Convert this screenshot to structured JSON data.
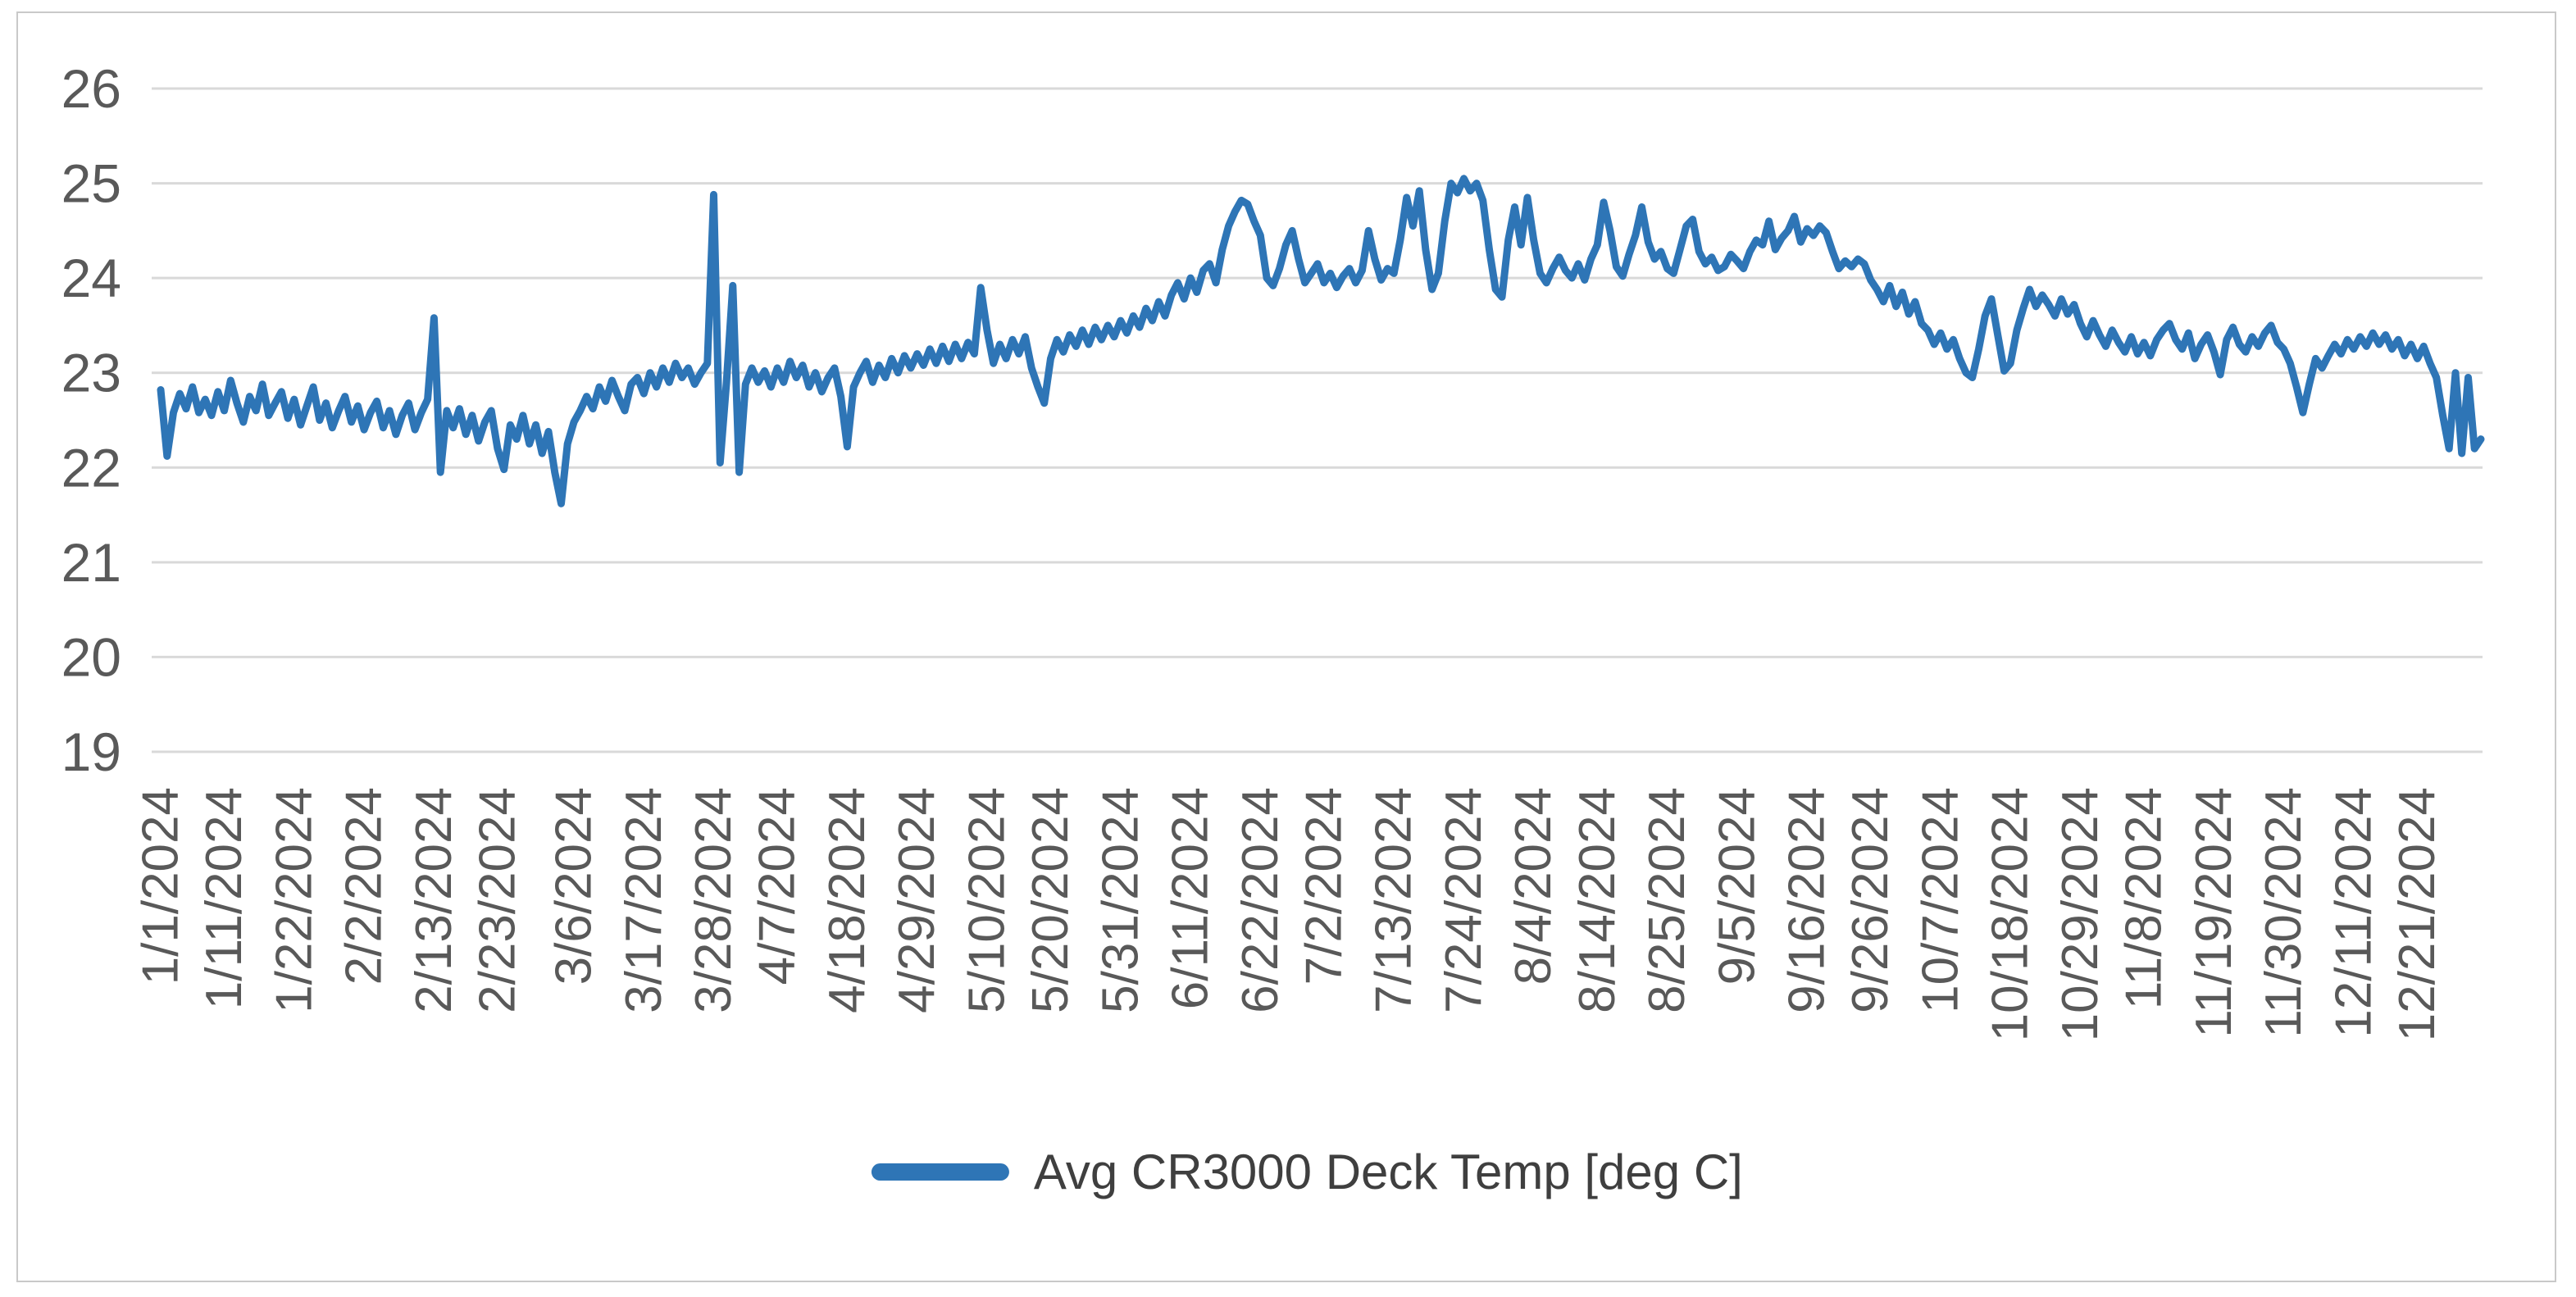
{
  "chart": {
    "legend_label": "Avg CR3000 Deck Temp [deg C]",
    "colors": {
      "line": "#2E75B6",
      "gridline": "#D9D9D9",
      "axis_text": "#595959",
      "legend_text": "#3F3F3F",
      "border": "#C9C9C9",
      "background": "#FFFFFF"
    }
  },
  "chart_data": {
    "type": "line",
    "title": "",
    "xlabel": "",
    "ylabel": "",
    "series_name": "Avg CR3000 Deck Temp [deg C]",
    "sampling": "daily averages, 1/1/2024 - 12/31/2024",
    "ylim": [
      19,
      26
    ],
    "yticks": [
      26,
      25,
      24,
      23,
      22,
      21,
      20,
      19
    ],
    "grid": "horizontal",
    "legend_position": "bottom-center",
    "x_tick_day_index": [
      0,
      10,
      21,
      32,
      43,
      53,
      65,
      76,
      87,
      97,
      108,
      119,
      130,
      140,
      151,
      162,
      173,
      183,
      194,
      205,
      216,
      226,
      237,
      248,
      259,
      269,
      280,
      291,
      302,
      312,
      323,
      334,
      345,
      355
    ],
    "x_tick_labels": [
      "1/1/2024",
      "1/11/2024",
      "1/22/2024",
      "2/2/2024",
      "2/13/2024",
      "2/23/2024",
      "3/6/2024",
      "3/17/2024",
      "3/28/2024",
      "4/7/2024",
      "4/18/2024",
      "4/29/2024",
      "5/10/2024",
      "5/20/2024",
      "5/31/2024",
      "6/11/2024",
      "6/22/2024",
      "7/2/2024",
      "7/13/2024",
      "7/24/2024",
      "8/4/2024",
      "8/14/2024",
      "8/25/2024",
      "9/5/2024",
      "9/16/2024",
      "9/26/2024",
      "10/7/2024",
      "10/18/2024",
      "10/29/2024",
      "11/8/2024",
      "11/19/2024",
      "11/30/2024",
      "12/11/2024",
      "12/21/2024"
    ],
    "values": [
      22.82,
      22.12,
      22.58,
      22.78,
      22.62,
      22.85,
      22.58,
      22.72,
      22.55,
      22.8,
      22.6,
      22.92,
      22.68,
      22.48,
      22.75,
      22.6,
      22.88,
      22.55,
      22.68,
      22.8,
      22.52,
      22.72,
      22.45,
      22.65,
      22.85,
      22.5,
      22.68,
      22.42,
      22.6,
      22.75,
      22.48,
      22.65,
      22.4,
      22.58,
      22.7,
      22.42,
      22.6,
      22.35,
      22.55,
      22.68,
      22.4,
      22.58,
      22.72,
      23.58,
      21.95,
      22.6,
      22.42,
      22.62,
      22.35,
      22.55,
      22.28,
      22.48,
      22.6,
      22.2,
      21.98,
      22.45,
      22.3,
      22.55,
      22.25,
      22.45,
      22.15,
      22.38,
      21.95,
      21.62,
      22.25,
      22.48,
      22.6,
      22.75,
      22.62,
      22.85,
      22.7,
      22.92,
      22.75,
      22.6,
      22.88,
      22.95,
      22.78,
      23.0,
      22.85,
      23.05,
      22.9,
      23.1,
      22.95,
      23.05,
      22.88,
      23.0,
      23.1,
      24.88,
      22.05,
      22.9,
      23.92,
      21.95,
      22.88,
      23.05,
      22.9,
      23.02,
      22.85,
      23.05,
      22.9,
      23.12,
      22.95,
      23.08,
      22.85,
      23.0,
      22.8,
      22.95,
      23.05,
      22.75,
      22.22,
      22.85,
      23.0,
      23.12,
      22.9,
      23.08,
      22.95,
      23.15,
      23.0,
      23.18,
      23.05,
      23.2,
      23.08,
      23.25,
      23.1,
      23.28,
      23.12,
      23.3,
      23.15,
      23.32,
      23.2,
      23.9,
      23.45,
      23.1,
      23.3,
      23.15,
      23.35,
      23.2,
      23.38,
      23.05,
      22.85,
      22.68,
      23.15,
      23.35,
      23.22,
      23.4,
      23.28,
      23.45,
      23.3,
      23.48,
      23.35,
      23.5,
      23.38,
      23.55,
      23.42,
      23.6,
      23.48,
      23.68,
      23.55,
      23.75,
      23.6,
      23.82,
      23.95,
      23.78,
      24.0,
      23.85,
      24.08,
      24.15,
      23.95,
      24.3,
      24.55,
      24.7,
      24.82,
      24.78,
      24.6,
      24.45,
      24.0,
      23.92,
      24.1,
      24.35,
      24.5,
      24.2,
      23.95,
      24.05,
      24.15,
      23.95,
      24.05,
      23.9,
      24.02,
      24.1,
      23.95,
      24.08,
      24.5,
      24.2,
      23.98,
      24.1,
      24.05,
      24.4,
      24.85,
      24.55,
      24.92,
      24.3,
      23.88,
      24.05,
      24.6,
      25.0,
      24.9,
      25.05,
      24.92,
      25.0,
      24.82,
      24.3,
      23.88,
      23.8,
      24.4,
      24.75,
      24.35,
      24.85,
      24.4,
      24.05,
      23.95,
      24.1,
      24.22,
      24.08,
      24.0,
      24.15,
      23.98,
      24.2,
      24.35,
      24.8,
      24.5,
      24.12,
      24.02,
      24.25,
      24.45,
      24.75,
      24.38,
      24.2,
      24.28,
      24.1,
      24.05,
      24.3,
      24.55,
      24.62,
      24.28,
      24.15,
      24.22,
      24.08,
      24.12,
      24.25,
      24.18,
      24.1,
      24.28,
      24.4,
      24.35,
      24.6,
      24.3,
      24.42,
      24.5,
      24.65,
      24.38,
      24.52,
      24.45,
      24.55,
      24.48,
      24.28,
      24.1,
      24.18,
      24.12,
      24.2,
      24.15,
      23.98,
      23.88,
      23.75,
      23.92,
      23.7,
      23.85,
      23.62,
      23.75,
      23.52,
      23.45,
      23.3,
      23.42,
      23.25,
      23.35,
      23.15,
      23.0,
      22.95,
      23.25,
      23.6,
      23.78,
      23.4,
      23.02,
      23.1,
      23.45,
      23.68,
      23.88,
      23.7,
      23.82,
      23.72,
      23.6,
      23.78,
      23.62,
      23.72,
      23.52,
      23.38,
      23.55,
      23.4,
      23.28,
      23.45,
      23.32,
      23.22,
      23.38,
      23.2,
      23.32,
      23.18,
      23.35,
      23.45,
      23.52,
      23.35,
      23.25,
      23.42,
      23.15,
      23.3,
      23.4,
      23.22,
      22.98,
      23.35,
      23.48,
      23.3,
      23.22,
      23.38,
      23.28,
      23.42,
      23.5,
      23.32,
      23.25,
      23.1,
      22.85,
      22.58,
      22.88,
      23.15,
      23.05,
      23.18,
      23.3,
      23.2,
      23.35,
      23.25,
      23.38,
      23.28,
      23.42,
      23.3,
      23.4,
      23.25,
      23.35,
      23.18,
      23.3,
      23.15,
      23.28,
      23.1,
      22.95,
      22.55,
      22.2,
      23.0,
      22.15,
      22.95,
      22.2,
      22.3
    ]
  }
}
